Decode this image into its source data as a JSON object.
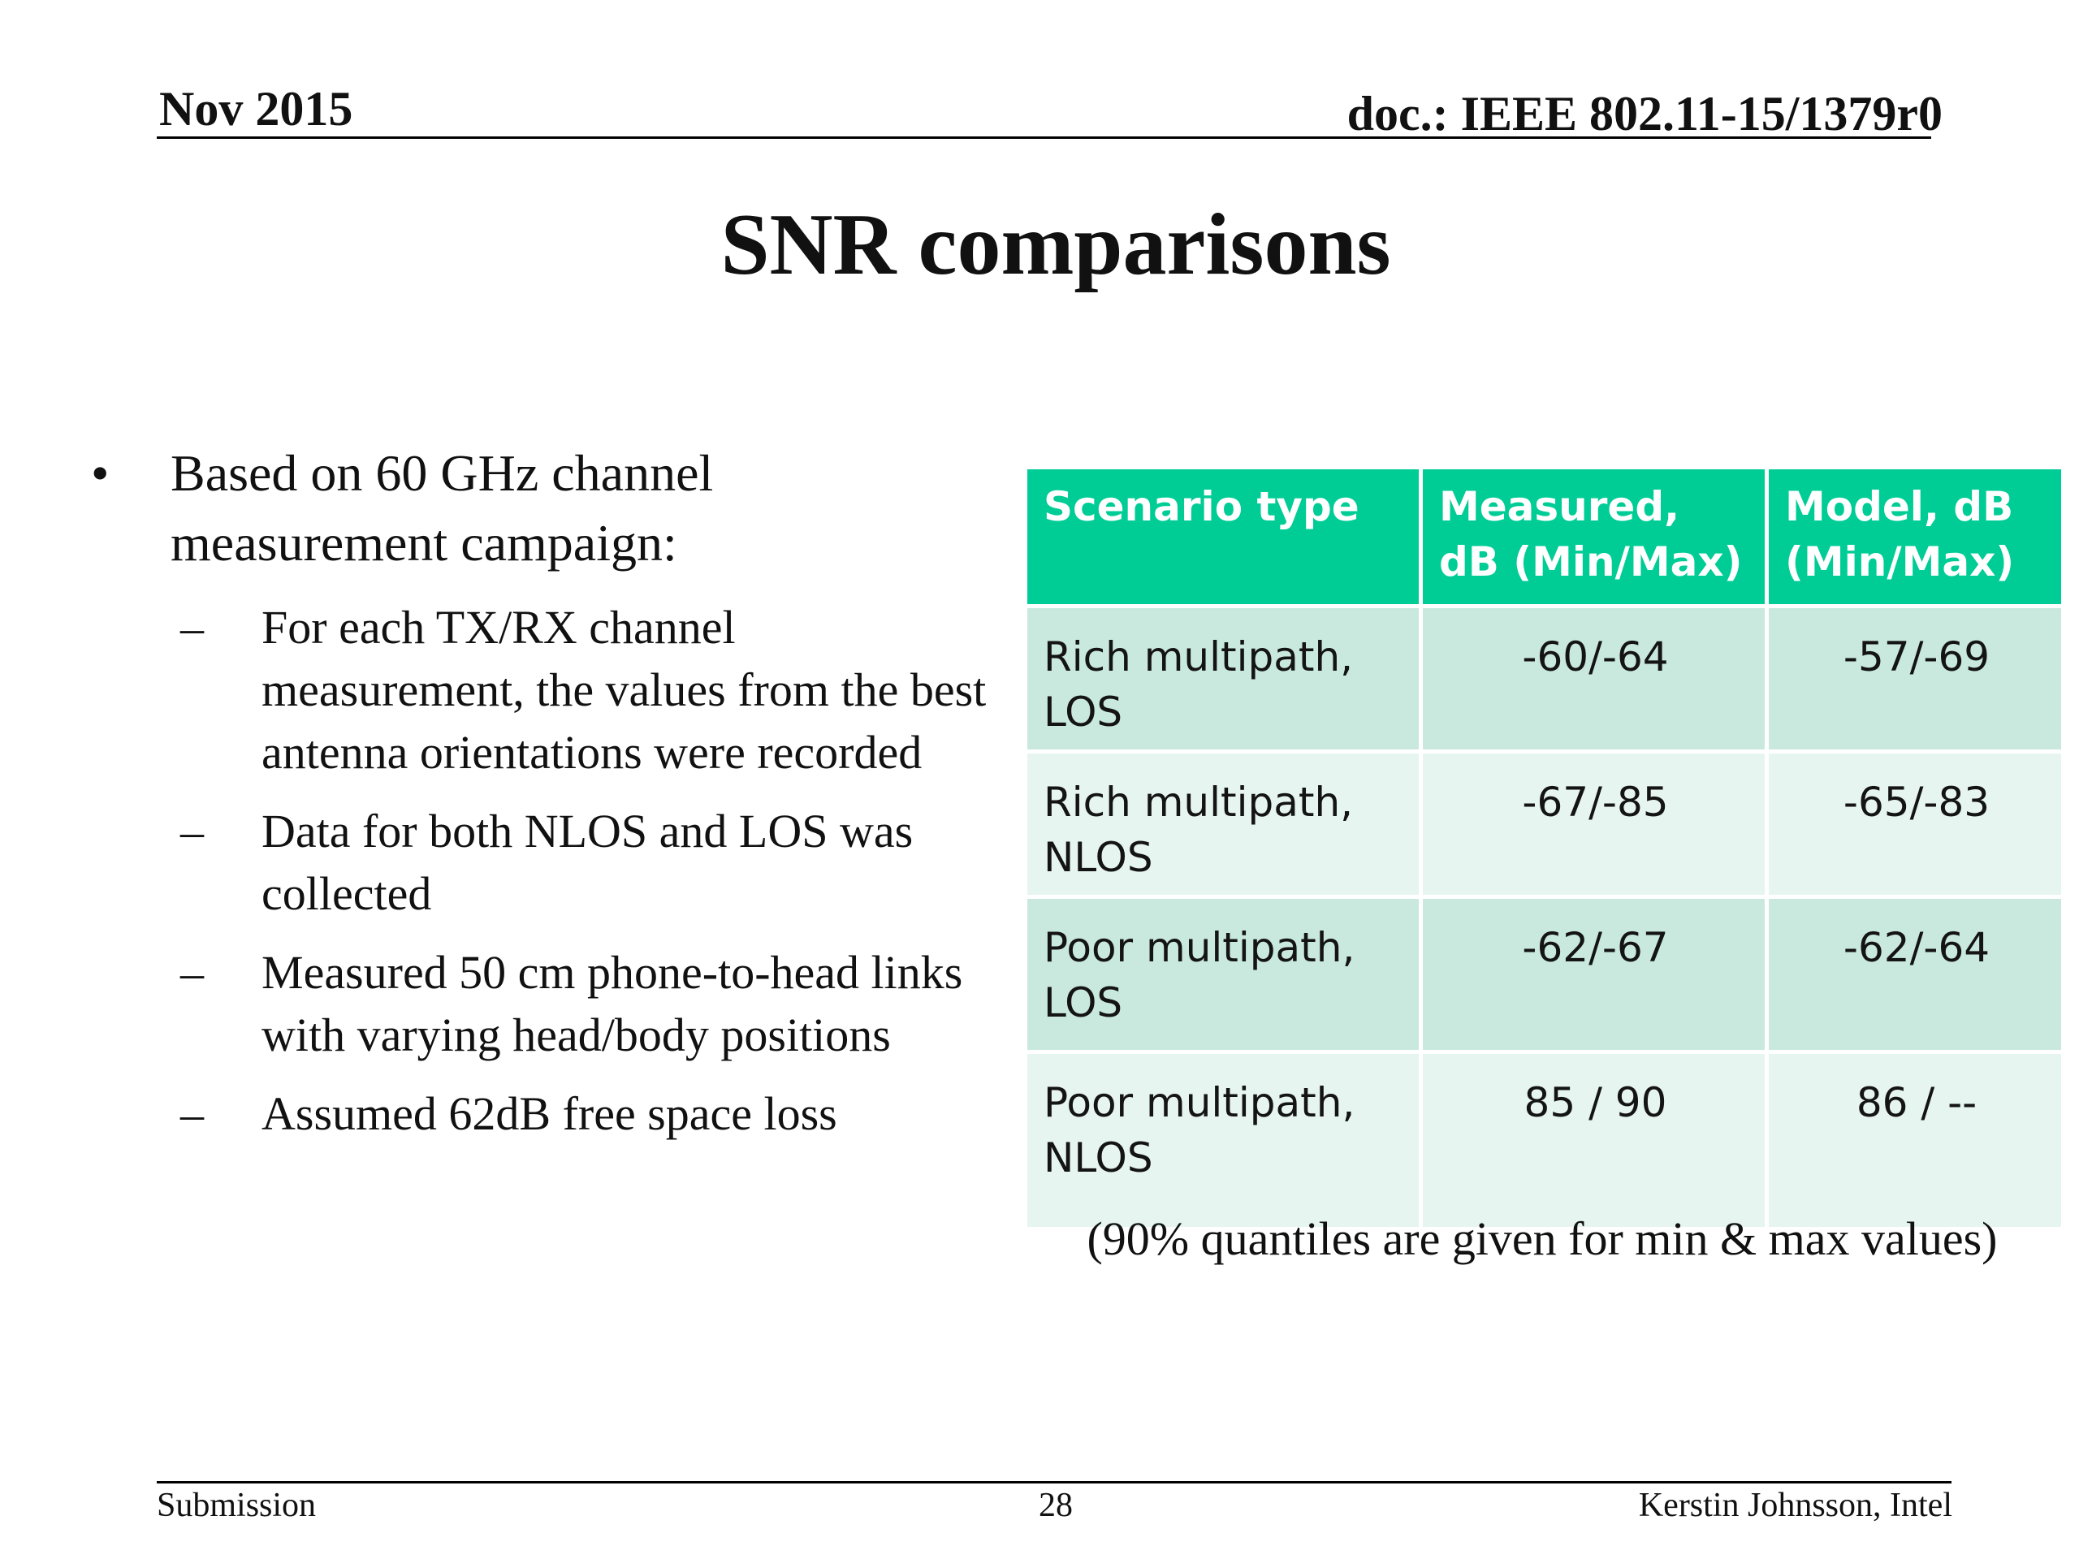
{
  "header": {
    "date": "Nov 2015",
    "doc_id": "doc.: IEEE 802.11-15/1379r0"
  },
  "title": "SNR comparisons",
  "bullets": {
    "marker_l1": "•",
    "marker_l2": "–",
    "main": "Based on 60 GHz channel measurement campaign:",
    "sub": [
      "For each TX/RX channel measurement, the values from the best antenna orientations were recorded",
      "Data for both NLOS and LOS was collected",
      "Measured 50 cm phone-to-head links with varying head/body positions",
      "Assumed 62dB free space loss"
    ]
  },
  "table": {
    "header_color": "#00cd96",
    "columns": [
      "Scenario type",
      "Measured, dB (Min/Max)",
      "Model, dB (Min/Max)"
    ],
    "rows": [
      [
        "Rich multipath, LOS",
        "-60/-64",
        "-57/-69"
      ],
      [
        "Rich multipath, NLOS",
        "-67/-85",
        "-65/-83"
      ],
      [
        "Poor multipath, LOS",
        "-62/-67",
        "-62/-64"
      ],
      [
        "Poor multipath, NLOS",
        "85 / 90",
        "86 / --"
      ]
    ],
    "note": "(90% quantiles are given for min & max values)"
  },
  "footer": {
    "left": "Submission",
    "page": "28",
    "right": "Kerstin Johnsson, Intel"
  }
}
